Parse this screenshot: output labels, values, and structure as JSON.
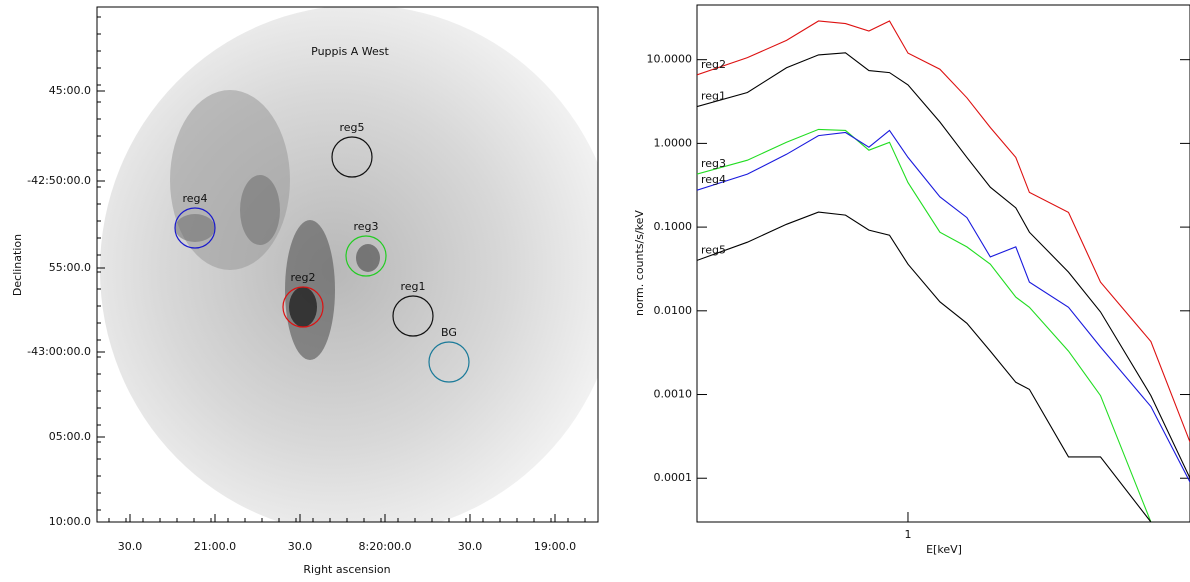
{
  "chart_data": [
    {
      "type": "image",
      "title": "Puppis A West",
      "x_label": "Right ascension",
      "y_label": "Declination",
      "x_tick_labels": [
        "30.0",
        "21:00.0",
        "30.0",
        "8:20:00.0",
        "30.0",
        "19:00.0"
      ],
      "y_tick_labels": [
        "45:00.0",
        "-42:50:00.0",
        "55:00.0",
        "-43:00:00.0",
        "05:00.0",
        "10:00.0"
      ],
      "regions": [
        {
          "name": "reg4",
          "color": "#1a1acc"
        },
        {
          "name": "reg3",
          "color": "#22cc22"
        },
        {
          "name": "reg2",
          "color": "#dd1111"
        },
        {
          "name": "reg1",
          "color": "#111111"
        },
        {
          "name": "reg5",
          "color": "#111111"
        },
        {
          "name": "BG",
          "color": "#1a7a99"
        }
      ]
    },
    {
      "type": "line",
      "x_label": "E[keV]",
      "y_label": "norm. counts/s/keV",
      "log_x": true,
      "log_y": true,
      "x": [
        0.3,
        0.4,
        0.5,
        0.6,
        0.7,
        0.8,
        0.9,
        1.0,
        1.2,
        1.4,
        1.6,
        1.85,
        2.0,
        2.5,
        3,
        4,
        5
      ],
      "xlim": [
        0.3,
        5
      ],
      "xticks": [
        1
      ],
      "ylim": [
        3e-05,
        45
      ],
      "yticks": [
        {
          "value": 10,
          "label": "10.0000"
        },
        {
          "value": 1,
          "label": "1.0000"
        },
        {
          "value": 0.1,
          "label": "0.1000"
        },
        {
          "value": 0.01,
          "label": "0.0100"
        },
        {
          "value": 0.001,
          "label": "0.0010"
        },
        {
          "value": 0.0001,
          "label": "0.0001"
        }
      ],
      "series": [
        {
          "name": "reg2",
          "color": "#dd1111",
          "values": [
            6.6,
            10.6,
            17,
            29,
            27,
            22,
            29,
            12,
            7.7,
            3.5,
            1.55,
            0.68,
            0.26,
            0.15,
            0.022,
            0.0043,
            0.00027
          ]
        },
        {
          "name": "reg1",
          "color": "#000000",
          "values": [
            2.75,
            4.05,
            8,
            11.4,
            12.1,
            7.4,
            7,
            5,
            1.8,
            0.68,
            0.3,
            0.17,
            0.087,
            0.029,
            0.0097,
            0.00097,
            0.0001
          ]
        },
        {
          "name": "reg3",
          "color": "#22dd22",
          "values": [
            0.43,
            0.63,
            1.03,
            1.47,
            1.43,
            0.83,
            1.03,
            0.34,
            0.087,
            0.058,
            0.036,
            0.0146,
            0.011,
            0.0033,
            0.00097,
            3e-05,
            null
          ]
        },
        {
          "name": "reg4",
          "color": "#1a1add",
          "values": [
            0.276,
            0.43,
            0.74,
            1.24,
            1.35,
            0.9,
            1.43,
            0.68,
            0.23,
            0.13,
            0.044,
            0.058,
            0.022,
            0.011,
            0.0037,
            0.00072,
            9e-05
          ]
        },
        {
          "name": "reg5",
          "color": "#000000",
          "values": [
            0.04,
            0.066,
            0.108,
            0.151,
            0.139,
            0.092,
            0.08,
            0.036,
            0.0128,
            0.0071,
            0.0033,
            0.0014,
            0.00115,
            0.00018,
            0.00018,
            3e-05,
            null
          ]
        }
      ]
    }
  ]
}
